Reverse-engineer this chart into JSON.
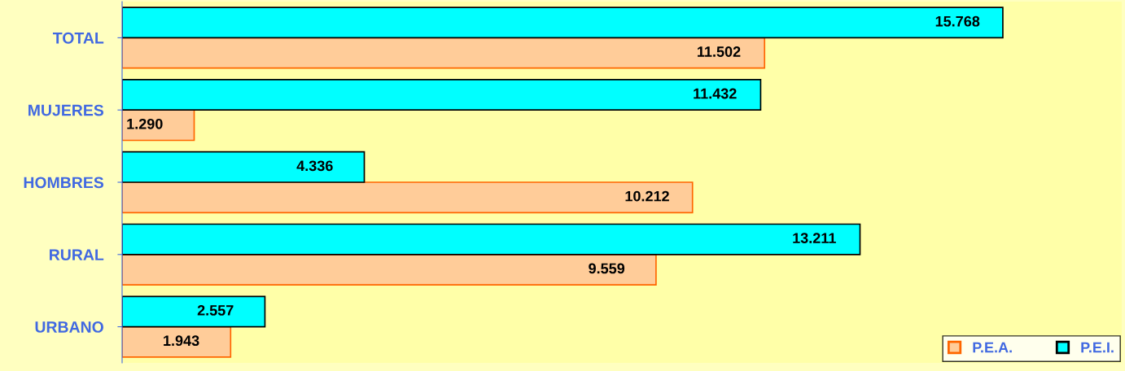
{
  "chart_data": {
    "type": "bar",
    "orientation": "horizontal",
    "categories": [
      "TOTAL",
      "MUJERES",
      "HOMBRES",
      "RURAL",
      "URBANO"
    ],
    "series": [
      {
        "name": "P.E.A.",
        "color": "#ffcc99",
        "values": [
          11502,
          1290,
          10212,
          9559,
          1943
        ],
        "value_labels": [
          "11.502",
          "1.290",
          "10.212",
          "9.559",
          "1.943"
        ]
      },
      {
        "name": "P.E.I.",
        "color": "#00ffff",
        "values": [
          15768,
          11432,
          4336,
          13211,
          2557
        ],
        "value_labels": [
          "15.768",
          "11.432",
          "4.336",
          "13.211",
          "2.557"
        ]
      }
    ],
    "legend": "bottom right",
    "grid": false,
    "tick_labels": "y"
  }
}
